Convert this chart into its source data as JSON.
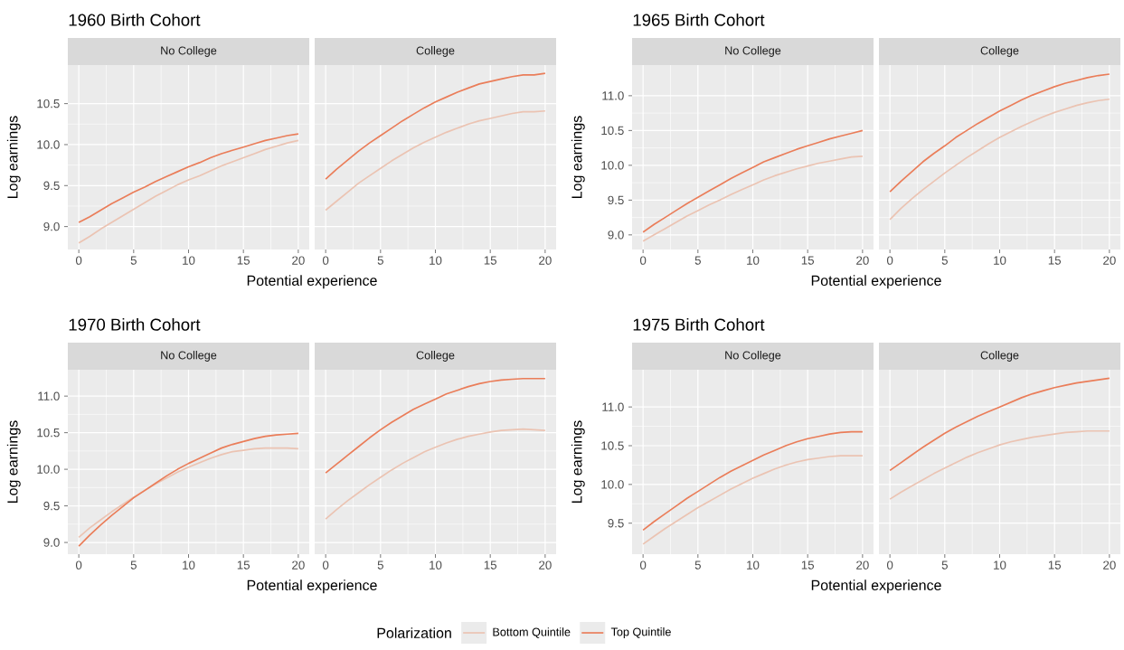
{
  "chart_data": [
    {
      "type": "line",
      "title": "1960 Birth Cohort",
      "subtitle": "No College",
      "xlabel": "Potential experience",
      "ylabel": "Log earnings",
      "xlim": [
        -1,
        21
      ],
      "ylim": [
        8.72,
        10.97
      ],
      "xticks": [
        0,
        5,
        10,
        15,
        20
      ],
      "yticks": [
        {
          "value": 9,
          "label": "9.0"
        },
        {
          "value": 9.5,
          "label": "9.5"
        },
        {
          "value": 10,
          "label": "10.0"
        },
        {
          "value": 10.5,
          "label": "10.5"
        }
      ],
      "grid": true,
      "legend": "bottom",
      "legend_title": "Polarization",
      "x": [
        0,
        1,
        2,
        3,
        4,
        5,
        6,
        7,
        8,
        9,
        10,
        11,
        12,
        13,
        14,
        15,
        16,
        17,
        18,
        19,
        20
      ],
      "series": [
        {
          "name": "Bottom Quintile",
          "color": "#ebc3b2",
          "values": [
            8.8,
            8.88,
            8.97,
            9.05,
            9.13,
            9.21,
            9.29,
            9.37,
            9.44,
            9.51,
            9.57,
            9.62,
            9.68,
            9.74,
            9.79,
            9.84,
            9.89,
            9.94,
            9.98,
            10.02,
            10.05
          ]
        },
        {
          "name": "Top Quintile",
          "color": "#ea7d59",
          "values": [
            9.05,
            9.12,
            9.2,
            9.28,
            9.35,
            9.42,
            9.48,
            9.55,
            9.61,
            9.67,
            9.73,
            9.78,
            9.84,
            9.89,
            9.93,
            9.97,
            10.01,
            10.05,
            10.08,
            10.11,
            10.13
          ]
        }
      ]
    },
    {
      "type": "line",
      "subtitle": "College",
      "xlim": [
        -1,
        21
      ],
      "ylim": [
        8.72,
        10.97
      ],
      "xticks": [
        0,
        5,
        10,
        15,
        20
      ],
      "yticks": [
        {
          "value": 9,
          "label": null
        },
        {
          "value": 9.5,
          "label": null
        },
        {
          "value": 10,
          "label": null
        },
        {
          "value": 10.5,
          "label": null
        }
      ],
      "grid": true,
      "tick_labels": "x",
      "x": [
        0,
        1,
        2,
        3,
        4,
        5,
        6,
        7,
        8,
        9,
        10,
        11,
        12,
        13,
        14,
        15,
        16,
        17,
        18,
        19,
        20
      ],
      "series": [
        {
          "color": "#ebc3b2",
          "values": [
            9.2,
            9.31,
            9.42,
            9.53,
            9.62,
            9.71,
            9.8,
            9.88,
            9.96,
            10.03,
            10.09,
            10.15,
            10.2,
            10.25,
            10.29,
            10.32,
            10.35,
            10.38,
            10.4,
            10.4,
            10.41
          ]
        },
        {
          "color": "#ea7d59",
          "values": [
            9.58,
            9.7,
            9.81,
            9.92,
            10.02,
            10.11,
            10.2,
            10.29,
            10.37,
            10.45,
            10.52,
            10.58,
            10.64,
            10.69,
            10.74,
            10.77,
            10.8,
            10.83,
            10.85,
            10.85,
            10.87
          ]
        }
      ]
    },
    {
      "type": "line",
      "title": "1965 Birth Cohort",
      "subtitle": "No College",
      "xlabel": "Potential experience",
      "ylabel": "Log earnings",
      "xlim": [
        -1,
        21
      ],
      "ylim": [
        8.79,
        11.44
      ],
      "xticks": [
        0,
        5,
        10,
        15,
        20
      ],
      "yticks": [
        {
          "value": 9,
          "label": "9.0"
        },
        {
          "value": 9.5,
          "label": "9.5"
        },
        {
          "value": 10,
          "label": "10.0"
        },
        {
          "value": 10.5,
          "label": "10.5"
        },
        {
          "value": 11,
          "label": "11.0"
        }
      ],
      "grid": true,
      "x": [
        0,
        1,
        2,
        3,
        4,
        5,
        6,
        7,
        8,
        9,
        10,
        11,
        12,
        13,
        14,
        15,
        16,
        17,
        18,
        19,
        20
      ],
      "series": [
        {
          "color": "#ebc3b2",
          "values": [
            8.91,
            9.0,
            9.09,
            9.18,
            9.27,
            9.35,
            9.43,
            9.5,
            9.58,
            9.65,
            9.72,
            9.79,
            9.85,
            9.9,
            9.95,
            9.99,
            10.03,
            10.06,
            10.09,
            10.12,
            10.13
          ]
        },
        {
          "color": "#ea7d59",
          "values": [
            9.04,
            9.15,
            9.25,
            9.35,
            9.45,
            9.54,
            9.63,
            9.72,
            9.81,
            9.89,
            9.97,
            10.05,
            10.11,
            10.17,
            10.23,
            10.28,
            10.33,
            10.38,
            10.42,
            10.46,
            10.5
          ]
        }
      ]
    },
    {
      "type": "line",
      "subtitle": "College",
      "xlim": [
        -1,
        21
      ],
      "ylim": [
        8.79,
        11.44
      ],
      "xticks": [
        0,
        5,
        10,
        15,
        20
      ],
      "yticks": [
        {
          "value": 9,
          "label": null
        },
        {
          "value": 9.5,
          "label": null
        },
        {
          "value": 10,
          "label": null
        },
        {
          "value": 10.5,
          "label": null
        },
        {
          "value": 11,
          "label": null
        }
      ],
      "grid": true,
      "tick_labels": "x",
      "x": [
        0,
        1,
        2,
        3,
        4,
        5,
        6,
        7,
        8,
        9,
        10,
        11,
        12,
        13,
        14,
        15,
        16,
        17,
        18,
        19,
        20
      ],
      "series": [
        {
          "color": "#ebc3b2",
          "values": [
            9.22,
            9.38,
            9.52,
            9.65,
            9.77,
            9.89,
            10.0,
            10.11,
            10.21,
            10.31,
            10.4,
            10.48,
            10.56,
            10.63,
            10.7,
            10.76,
            10.81,
            10.86,
            10.9,
            10.93,
            10.95
          ]
        },
        {
          "color": "#ea7d59",
          "values": [
            9.62,
            9.77,
            9.91,
            10.05,
            10.17,
            10.28,
            10.4,
            10.5,
            10.6,
            10.69,
            10.78,
            10.86,
            10.94,
            11.01,
            11.07,
            11.13,
            11.18,
            11.22,
            11.26,
            11.29,
            11.31
          ]
        }
      ]
    },
    {
      "type": "line",
      "title": "1970 Birth Cohort",
      "subtitle": "No College",
      "xlabel": "Potential experience",
      "ylabel": "Log earnings",
      "xlim": [
        -1,
        21
      ],
      "ylim": [
        8.84,
        11.36
      ],
      "xticks": [
        0,
        5,
        10,
        15,
        20
      ],
      "yticks": [
        {
          "value": 9,
          "label": "9.0"
        },
        {
          "value": 9.5,
          "label": "9.5"
        },
        {
          "value": 10,
          "label": "10.0"
        },
        {
          "value": 10.5,
          "label": "10.5"
        },
        {
          "value": 11,
          "label": "11.0"
        }
      ],
      "grid": true,
      "x": [
        0,
        1,
        2,
        3,
        4,
        5,
        6,
        7,
        8,
        9,
        10,
        11,
        12,
        13,
        14,
        15,
        16,
        17,
        18,
        19,
        20
      ],
      "series": [
        {
          "color": "#ebc3b2",
          "values": [
            9.07,
            9.2,
            9.31,
            9.42,
            9.52,
            9.62,
            9.71,
            9.8,
            9.88,
            9.96,
            10.03,
            10.09,
            10.15,
            10.2,
            10.24,
            10.26,
            10.28,
            10.29,
            10.29,
            10.29,
            10.28
          ]
        },
        {
          "color": "#ea7d59",
          "values": [
            8.95,
            9.1,
            9.24,
            9.37,
            9.49,
            9.61,
            9.71,
            9.81,
            9.91,
            10.0,
            10.08,
            10.15,
            10.22,
            10.29,
            10.34,
            10.38,
            10.42,
            10.45,
            10.47,
            10.48,
            10.49
          ]
        }
      ]
    },
    {
      "type": "line",
      "subtitle": "College",
      "xlim": [
        -1,
        21
      ],
      "ylim": [
        8.84,
        11.36
      ],
      "xticks": [
        0,
        5,
        10,
        15,
        20
      ],
      "yticks": [
        {
          "value": 9,
          "label": null
        },
        {
          "value": 9.5,
          "label": null
        },
        {
          "value": 10,
          "label": null
        },
        {
          "value": 10.5,
          "label": null
        },
        {
          "value": 11,
          "label": null
        }
      ],
      "grid": true,
      "tick_labels": "x",
      "x": [
        0,
        1,
        2,
        3,
        4,
        5,
        6,
        7,
        8,
        9,
        10,
        11,
        12,
        13,
        14,
        15,
        16,
        17,
        18,
        19,
        20
      ],
      "series": [
        {
          "color": "#ebc3b2",
          "values": [
            9.32,
            9.45,
            9.57,
            9.68,
            9.79,
            9.89,
            9.99,
            10.08,
            10.16,
            10.24,
            10.3,
            10.36,
            10.41,
            10.45,
            10.48,
            10.51,
            10.53,
            10.54,
            10.55,
            10.54,
            10.53
          ]
        },
        {
          "color": "#ea7d59",
          "values": [
            9.95,
            10.07,
            10.19,
            10.31,
            10.43,
            10.54,
            10.64,
            10.73,
            10.82,
            10.89,
            10.96,
            11.03,
            11.08,
            11.13,
            11.17,
            11.2,
            11.22,
            11.23,
            11.24,
            11.24,
            11.24
          ]
        }
      ]
    },
    {
      "type": "line",
      "title": "1975 Birth Cohort",
      "subtitle": "No College",
      "xlabel": "Potential experience",
      "ylabel": "Log earnings",
      "xlim": [
        -1,
        21
      ],
      "ylim": [
        9.1,
        11.48
      ],
      "xticks": [
        0,
        5,
        10,
        15,
        20
      ],
      "yticks": [
        {
          "value": 9.5,
          "label": "9.5"
        },
        {
          "value": 10,
          "label": "10.0"
        },
        {
          "value": 10.5,
          "label": "10.5"
        },
        {
          "value": 11,
          "label": "11.0"
        }
      ],
      "grid": true,
      "x": [
        0,
        1,
        2,
        3,
        4,
        5,
        6,
        7,
        8,
        9,
        10,
        11,
        12,
        13,
        14,
        15,
        16,
        17,
        18,
        19,
        20
      ],
      "series": [
        {
          "color": "#ebc3b2",
          "values": [
            9.23,
            9.33,
            9.43,
            9.52,
            9.61,
            9.7,
            9.78,
            9.86,
            9.94,
            10.01,
            10.08,
            10.14,
            10.2,
            10.25,
            10.29,
            10.32,
            10.34,
            10.36,
            10.37,
            10.37,
            10.37
          ]
        },
        {
          "color": "#ea7d59",
          "values": [
            9.41,
            9.52,
            9.62,
            9.72,
            9.82,
            9.91,
            10.0,
            10.09,
            10.17,
            10.24,
            10.31,
            10.38,
            10.44,
            10.5,
            10.55,
            10.59,
            10.62,
            10.65,
            10.67,
            10.68,
            10.68
          ]
        }
      ]
    },
    {
      "type": "line",
      "subtitle": "College",
      "xlim": [
        -1,
        21
      ],
      "ylim": [
        9.1,
        11.48
      ],
      "xticks": [
        0,
        5,
        10,
        15,
        20
      ],
      "yticks": [
        {
          "value": 9.5,
          "label": null
        },
        {
          "value": 10,
          "label": null
        },
        {
          "value": 10.5,
          "label": null
        },
        {
          "value": 11,
          "label": null
        }
      ],
      "grid": true,
      "tick_labels": "x",
      "x": [
        0,
        1,
        2,
        3,
        4,
        5,
        6,
        7,
        8,
        9,
        10,
        11,
        12,
        13,
        14,
        15,
        16,
        17,
        18,
        19,
        20
      ],
      "series": [
        {
          "color": "#ebc3b2",
          "values": [
            9.81,
            9.9,
            9.98,
            10.06,
            10.14,
            10.21,
            10.28,
            10.35,
            10.41,
            10.46,
            10.51,
            10.55,
            10.58,
            10.61,
            10.63,
            10.65,
            10.67,
            10.68,
            10.69,
            10.69,
            10.69
          ]
        },
        {
          "color": "#ea7d59",
          "values": [
            10.18,
            10.28,
            10.38,
            10.48,
            10.57,
            10.66,
            10.74,
            10.81,
            10.88,
            10.94,
            11.0,
            11.06,
            11.12,
            11.17,
            11.21,
            11.25,
            11.28,
            11.31,
            11.33,
            11.35,
            11.37
          ]
        }
      ]
    }
  ]
}
